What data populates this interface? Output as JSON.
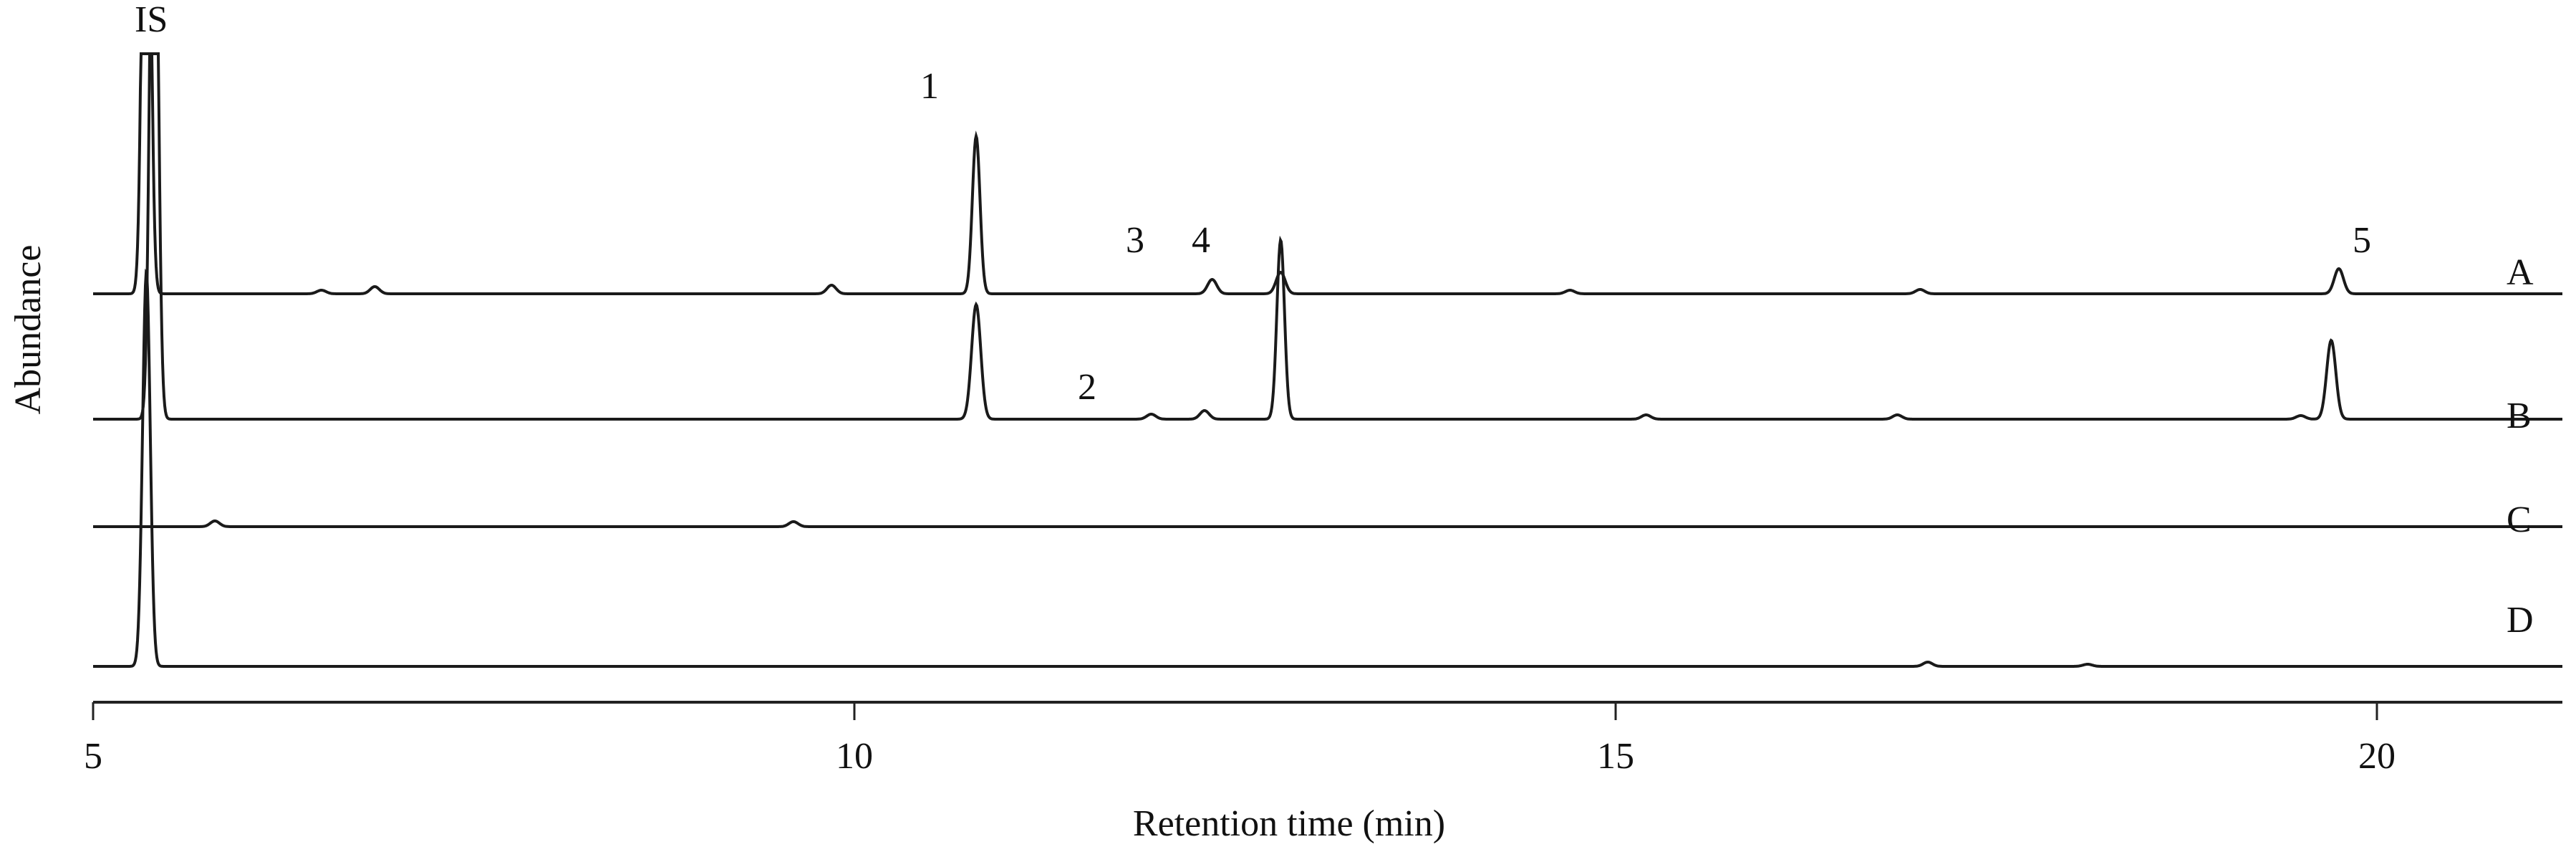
{
  "chart_data": {
    "type": "line",
    "title": "",
    "xlabel": "Retention time (min)",
    "ylabel": "Abundance",
    "xlim": [
      5,
      21
    ],
    "x_ticks": [
      5,
      10,
      15,
      20
    ],
    "x_tick_labels": [
      "5",
      "10",
      "15",
      "20"
    ],
    "grid": false,
    "legend": "none; traces labelled at right end",
    "series": [
      {
        "name": "A",
        "baseline_offset": 3,
        "peaks": [
          {
            "rt": 5.35,
            "height": 10,
            "label": "IS"
          },
          {
            "rt": 6.5,
            "height": 0.05
          },
          {
            "rt": 6.85,
            "height": 0.1
          },
          {
            "rt": 9.85,
            "height": 0.12
          },
          {
            "rt": 10.8,
            "height": 2.2,
            "label": "1"
          },
          {
            "rt": 12.35,
            "height": 0.2,
            "label": "3"
          },
          {
            "rt": 12.8,
            "height": 0.3,
            "label": "4"
          },
          {
            "rt": 14.7,
            "height": 0.05
          },
          {
            "rt": 17.0,
            "height": 0.06
          },
          {
            "rt": 19.75,
            "height": 0.35,
            "label": "5"
          }
        ]
      },
      {
        "name": "B",
        "baseline_offset": 2,
        "peaks": [
          {
            "rt": 5.4,
            "height": 10
          },
          {
            "rt": 10.8,
            "height": 1.6
          },
          {
            "rt": 11.95,
            "height": 0.07,
            "label": "2"
          },
          {
            "rt": 12.3,
            "height": 0.12
          },
          {
            "rt": 12.8,
            "height": 2.5
          },
          {
            "rt": 15.2,
            "height": 0.06
          },
          {
            "rt": 16.85,
            "height": 0.06
          },
          {
            "rt": 19.5,
            "height": 0.05
          },
          {
            "rt": 19.7,
            "height": 1.1
          }
        ]
      },
      {
        "name": "C",
        "baseline_offset": 1,
        "peaks": [
          {
            "rt": 5.8,
            "height": 0.08
          },
          {
            "rt": 9.6,
            "height": 0.07
          }
        ]
      },
      {
        "name": "D",
        "baseline_offset": 0,
        "peaks": [
          {
            "rt": 5.35,
            "height": 5.5
          },
          {
            "rt": 17.05,
            "height": 0.06
          },
          {
            "rt": 18.1,
            "height": 0.03
          }
        ]
      }
    ],
    "annotations": [
      "IS",
      "1",
      "2",
      "3",
      "4",
      "5"
    ]
  },
  "labels": {
    "xlabel": "Retention time (min)",
    "ylabel": "Abundance",
    "ticks": [
      "5",
      "10",
      "15",
      "20"
    ],
    "traces": [
      "A",
      "B",
      "C",
      "D"
    ],
    "peaks": {
      "IS": "IS",
      "p1": "1",
      "p2": "2",
      "p3": "3",
      "p4": "4",
      "p5": "5"
    }
  }
}
